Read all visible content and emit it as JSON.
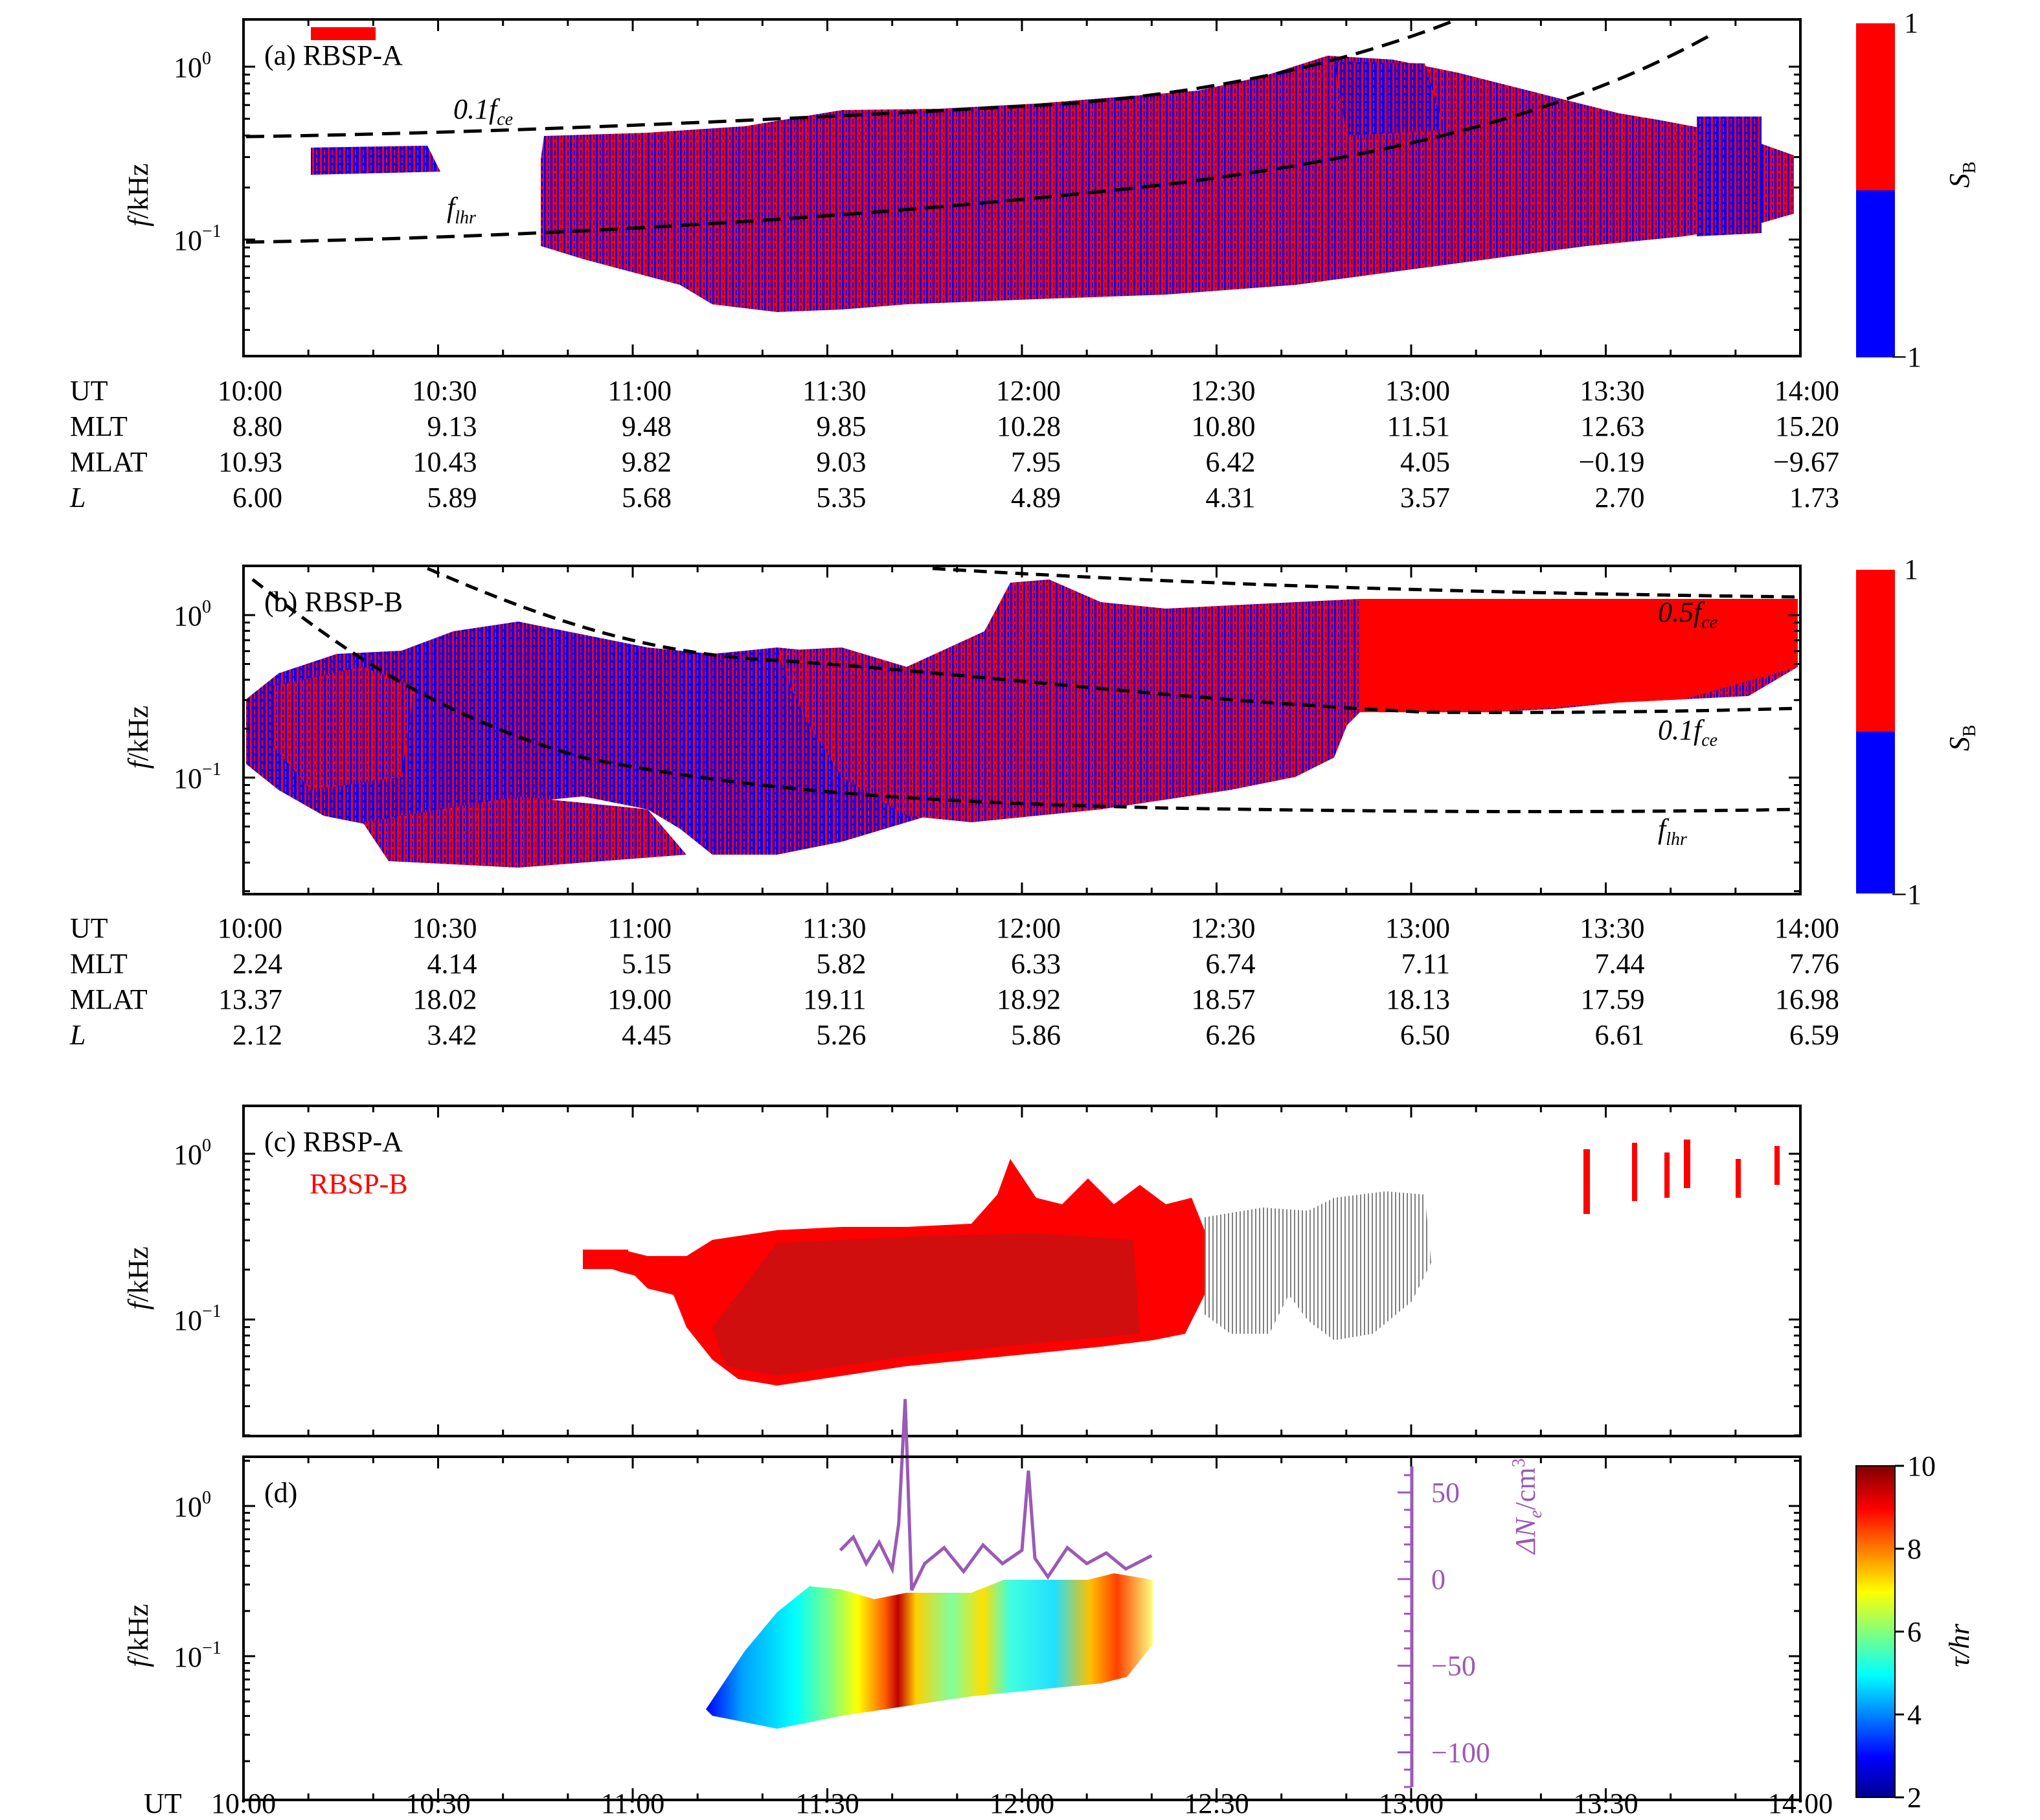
{
  "colors": {
    "sb_pos": "#ff0000",
    "sb_neg": "#0000ff",
    "rbsp_a_c": "#808080",
    "rbsp_b_c": "#ff0000",
    "overlap_c": "#c81010",
    "dne_line": "#9b59b6",
    "axis": "#000000"
  },
  "time_ticks": [
    "10:00",
    "10:30",
    "11:00",
    "11:30",
    "12:00",
    "12:30",
    "13:00",
    "13:30",
    "14:00"
  ],
  "ytick_labels": {
    "one": "10",
    "one_exp": "0",
    "tenth": "10",
    "tenth_exp": "−1"
  },
  "ylabel": {
    "f": "f",
    "unit": "/kHz"
  },
  "panel_a": {
    "label": "(a) RBSP-A",
    "curves": [
      {
        "name": "0.1fce",
        "text": "0.1f",
        "sub": "ce"
      },
      {
        "name": "flhr",
        "text": "f",
        "sub": "lhr"
      }
    ],
    "colorbar": {
      "max": "1",
      "min": "−1",
      "label": "S",
      "label_sub": "B"
    },
    "ephemeris": [
      {
        "name": "UT",
        "values": [
          "10:00",
          "10:30",
          "11:00",
          "11:30",
          "12:00",
          "12:30",
          "13:00",
          "13:30",
          "14:00"
        ]
      },
      {
        "name": "MLT",
        "values": [
          "8.80",
          "9.13",
          "9.48",
          "9.85",
          "10.28",
          "10.80",
          "11.51",
          "12.63",
          "15.20"
        ]
      },
      {
        "name": "MLAT",
        "values": [
          "10.93",
          "10.43",
          "9.82",
          "9.03",
          "7.95",
          "6.42",
          "4.05",
          "−0.19",
          "−9.67"
        ]
      },
      {
        "name": "L",
        "values": [
          "6.00",
          "5.89",
          "5.68",
          "5.35",
          "4.89",
          "4.31",
          "3.57",
          "2.70",
          "1.73"
        ]
      }
    ]
  },
  "panel_b": {
    "label": "(b) RBSP-B",
    "curves": [
      {
        "name": "0.5fce",
        "text": "0.5f",
        "sub": "ce"
      },
      {
        "name": "0.1fce",
        "text": "0.1f",
        "sub": "ce"
      },
      {
        "name": "flhr",
        "text": "f",
        "sub": "lhr"
      }
    ],
    "colorbar": {
      "max": "1",
      "min": "−1",
      "label": "S",
      "label_sub": "B"
    },
    "ephemeris": [
      {
        "name": "UT",
        "values": [
          "10:00",
          "10:30",
          "11:00",
          "11:30",
          "12:00",
          "12:30",
          "13:00",
          "13:30",
          "14:00"
        ]
      },
      {
        "name": "MLT",
        "values": [
          "2.24",
          "4.14",
          "5.15",
          "5.82",
          "6.33",
          "6.74",
          "7.11",
          "7.44",
          "7.76"
        ]
      },
      {
        "name": "MLAT",
        "values": [
          "13.37",
          "18.02",
          "19.00",
          "19.11",
          "18.92",
          "18.57",
          "18.13",
          "17.59",
          "16.98"
        ]
      },
      {
        "name": "L",
        "values": [
          "2.12",
          "3.42",
          "4.45",
          "5.26",
          "5.86",
          "6.26",
          "6.50",
          "6.61",
          "6.59"
        ]
      }
    ]
  },
  "panel_c": {
    "label": "(c) RBSP-A",
    "label2": "RBSP-B"
  },
  "panel_d": {
    "label": "(d)",
    "colorbar": {
      "ticks": [
        "2",
        "4",
        "6",
        "8",
        "10"
      ],
      "label": "τ/hr"
    },
    "dne_axis": {
      "ticks": [
        "50",
        "0",
        "−50",
        "−100"
      ],
      "label": "ΔN",
      "label_sub": "e",
      "label_unit": "/cm",
      "label_sup": "3"
    },
    "xaxis_prefix": "UT"
  },
  "chart_data": [
    {
      "type": "heatmap",
      "title": "(a) RBSP-A",
      "ylabel": "f/kHz",
      "x": [
        "10:00",
        "14:00"
      ],
      "ylim_khz": [
        0.02,
        2.0
      ],
      "yscale": "log",
      "colorbar": {
        "label": "SB",
        "range": [
          -1,
          1
        ]
      },
      "series": [
        {
          "name": "0.1fce",
          "x": [
            "10:00",
            "10:30",
            "11:00",
            "11:30",
            "12:00",
            "12:30",
            "13:00",
            "13:20"
          ],
          "y_khz": [
            0.4,
            0.42,
            0.48,
            0.58,
            0.75,
            1.05,
            1.6,
            2.0
          ]
        },
        {
          "name": "flhr",
          "x": [
            "10:00",
            "10:30",
            "11:00",
            "11:30",
            "12:00",
            "12:30",
            "13:00",
            "13:30",
            "13:45"
          ],
          "y_khz": [
            0.09,
            0.095,
            0.105,
            0.13,
            0.17,
            0.24,
            0.38,
            0.8,
            1.6
          ]
        }
      ]
    },
    {
      "type": "heatmap",
      "title": "(b) RBSP-B",
      "ylabel": "f/kHz",
      "x": [
        "10:00",
        "14:00"
      ],
      "ylim_khz": [
        0.02,
        2.0
      ],
      "yscale": "log",
      "colorbar": {
        "label": "SB",
        "range": [
          -1,
          1
        ]
      },
      "series": [
        {
          "name": "0.5fce",
          "x": [
            "11:05",
            "11:30",
            "12:00",
            "12:30",
            "13:00",
            "13:30",
            "14:00"
          ],
          "y_khz": [
            2.0,
            1.8,
            1.6,
            1.5,
            1.45,
            1.42,
            1.4
          ]
        },
        {
          "name": "0.1fce",
          "x": [
            "10:30",
            "11:00",
            "11:30",
            "12:00",
            "12:30",
            "13:00",
            "13:30",
            "14:00"
          ],
          "y_khz": [
            2.0,
            0.9,
            0.55,
            0.38,
            0.32,
            0.3,
            0.29,
            0.28
          ]
        },
        {
          "name": "flhr",
          "x": [
            "10:00",
            "10:15",
            "10:30",
            "11:00",
            "11:30",
            "12:00",
            "12:30",
            "13:00",
            "13:30",
            "14:00"
          ],
          "y_khz": [
            1.8,
            0.8,
            0.4,
            0.18,
            0.11,
            0.085,
            0.075,
            0.07,
            0.068,
            0.067
          ]
        }
      ]
    },
    {
      "type": "heatmap",
      "title": "(c) RBSP-A / RBSP-B",
      "ylabel": "f/kHz",
      "x": [
        "10:00",
        "14:00"
      ],
      "ylim_khz": [
        0.02,
        2.0
      ],
      "yscale": "log",
      "series": [
        {
          "name": "RBSP-A",
          "x_range": [
            "11:10",
            "13:00"
          ],
          "f_range_khz": [
            0.035,
            0.55
          ]
        },
        {
          "name": "RBSP-B",
          "x_range": [
            "10:52",
            "14:00"
          ],
          "f_range_khz": [
            0.035,
            1.5
          ]
        }
      ]
    },
    {
      "type": "heatmap",
      "title": "(d)",
      "ylabel": "f/kHz",
      "x": [
        "10:00",
        "14:00"
      ],
      "ylim_khz": [
        0.02,
        2.0
      ],
      "yscale": "log",
      "colorbar": {
        "label": "τ/hr",
        "range": [
          2,
          10
        ]
      },
      "series": [
        {
          "name": "τ",
          "x_range": [
            "11:10",
            "12:20"
          ],
          "f_range_khz": [
            0.035,
            0.32
          ]
        },
        {
          "name": "ΔNe/cm3",
          "axis_range": [
            -120,
            65
          ],
          "x": [
            "11:32",
            "11:34",
            "11:36",
            "11:38",
            "11:40",
            "11:41",
            "11:42",
            "11:43",
            "11:45",
            "11:48",
            "11:51",
            "11:54",
            "11:57",
            "12:00",
            "12:01",
            "12:02",
            "12:04",
            "12:07",
            "12:10",
            "12:13",
            "12:16",
            "12:20"
          ],
          "values": [
            5,
            10,
            0,
            8,
            -2,
            15,
            62,
            -10,
            0,
            6,
            -3,
            7,
            0,
            5,
            35,
            2,
            -5,
            6,
            0,
            4,
            -2,
            3
          ]
        }
      ]
    }
  ]
}
